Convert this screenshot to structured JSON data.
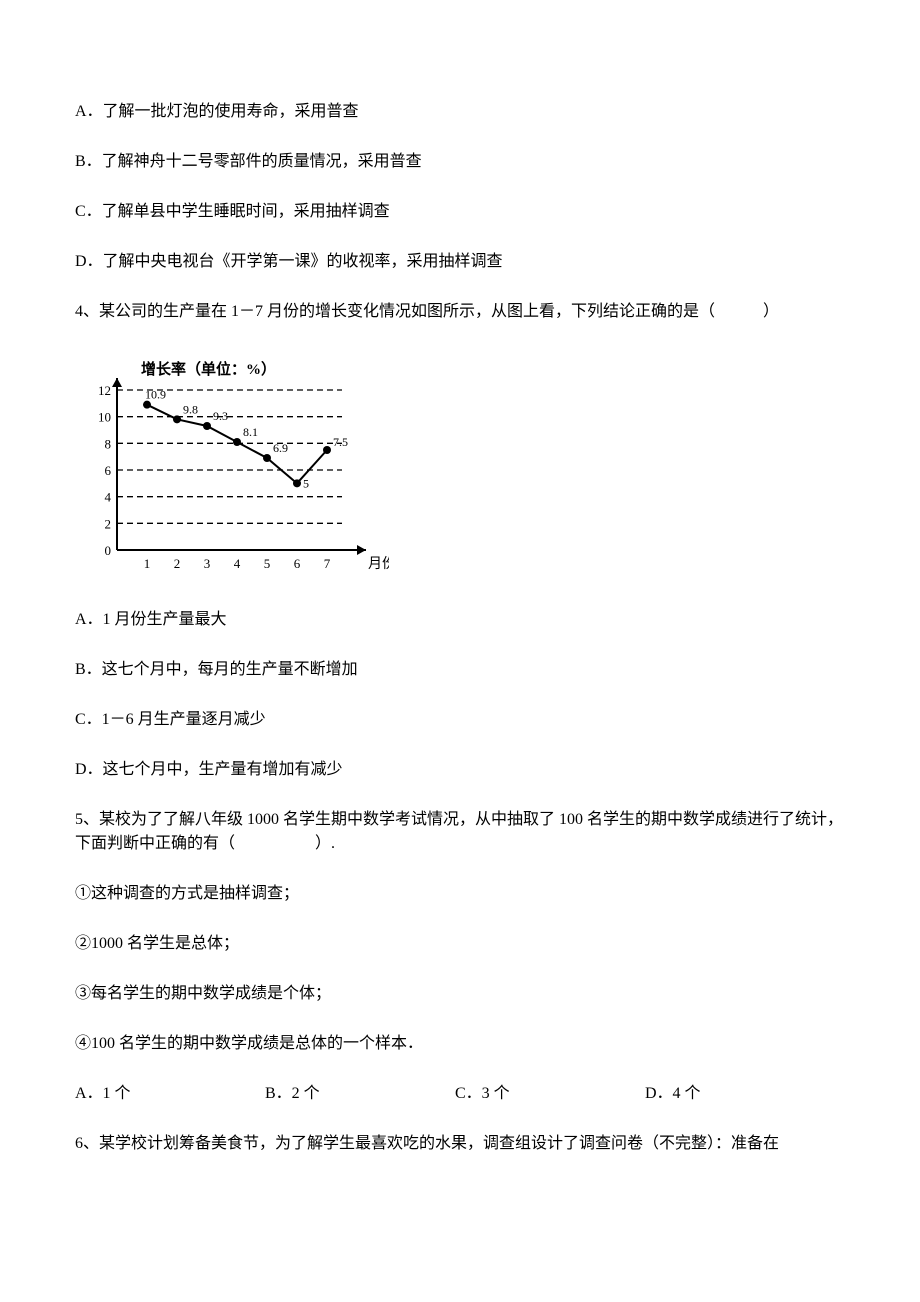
{
  "q3": {
    "optA": "A．了解一批灯泡的使用寿命，采用普查",
    "optB": "B．了解神舟十二号零部件的质量情况，采用普查",
    "optC": "C．了解单县中学生睡眠时间，采用抽样调查",
    "optD": "D．了解中央电视台《开学第一课》的收视率，采用抽样调查"
  },
  "q4": {
    "stem": "4、某公司的生产量在 1－7 月份的增长变化情况如图所示，从图上看，下列结论正确的是（　　　）",
    "chart": {
      "type": "line",
      "y_axis_title": "增长率（单位：%）",
      "x_axis_title": "月份",
      "x_labels": [
        "1",
        "2",
        "3",
        "4",
        "5",
        "6",
        "7"
      ],
      "y_ticks": [
        0,
        2,
        4,
        6,
        8,
        10,
        12
      ],
      "values": [
        10.9,
        9.8,
        9.3,
        8.1,
        6.9,
        5,
        7.5
      ],
      "value_labels": [
        "10.9",
        "9.8",
        "9.3",
        "8.1",
        "6.9",
        "5",
        "7.5"
      ],
      "line_color": "#000000",
      "marker_color": "#000000",
      "grid_color": "#000000",
      "background": "#ffffff",
      "axis_fontsize": 13,
      "label_fontsize": 12,
      "marker_radius": 4,
      "line_width": 2,
      "grid_dash": "6,4"
    },
    "optA": "A．1 月份生产量最大",
    "optB": "B．这七个月中，每月的生产量不断增加",
    "optC": "C．1－6 月生产量逐月减少",
    "optD": "D．这七个月中，生产量有增加有减少"
  },
  "q5": {
    "stem": "5、某校为了了解八年级 1000 名学生期中数学考试情况，从中抽取了 100 名学生的期中数学成绩进行了统计，下面判断中正确的有（　　　　　）.",
    "s1": "①这种调查的方式是抽样调查；",
    "s2": "②1000 名学生是总体；",
    "s3": "③每名学生的期中数学成绩是个体；",
    "s4": "④100 名学生的期中数学成绩是总体的一个样本．",
    "optA": "A．1 个",
    "optB": "B．2 个",
    "optC": "C．3 个",
    "optD": "D．4 个"
  },
  "q6": {
    "stem": "6、某学校计划筹备美食节，为了解学生最喜欢吃的水果，调查组设计了调查问卷（不完整）：准备在"
  }
}
